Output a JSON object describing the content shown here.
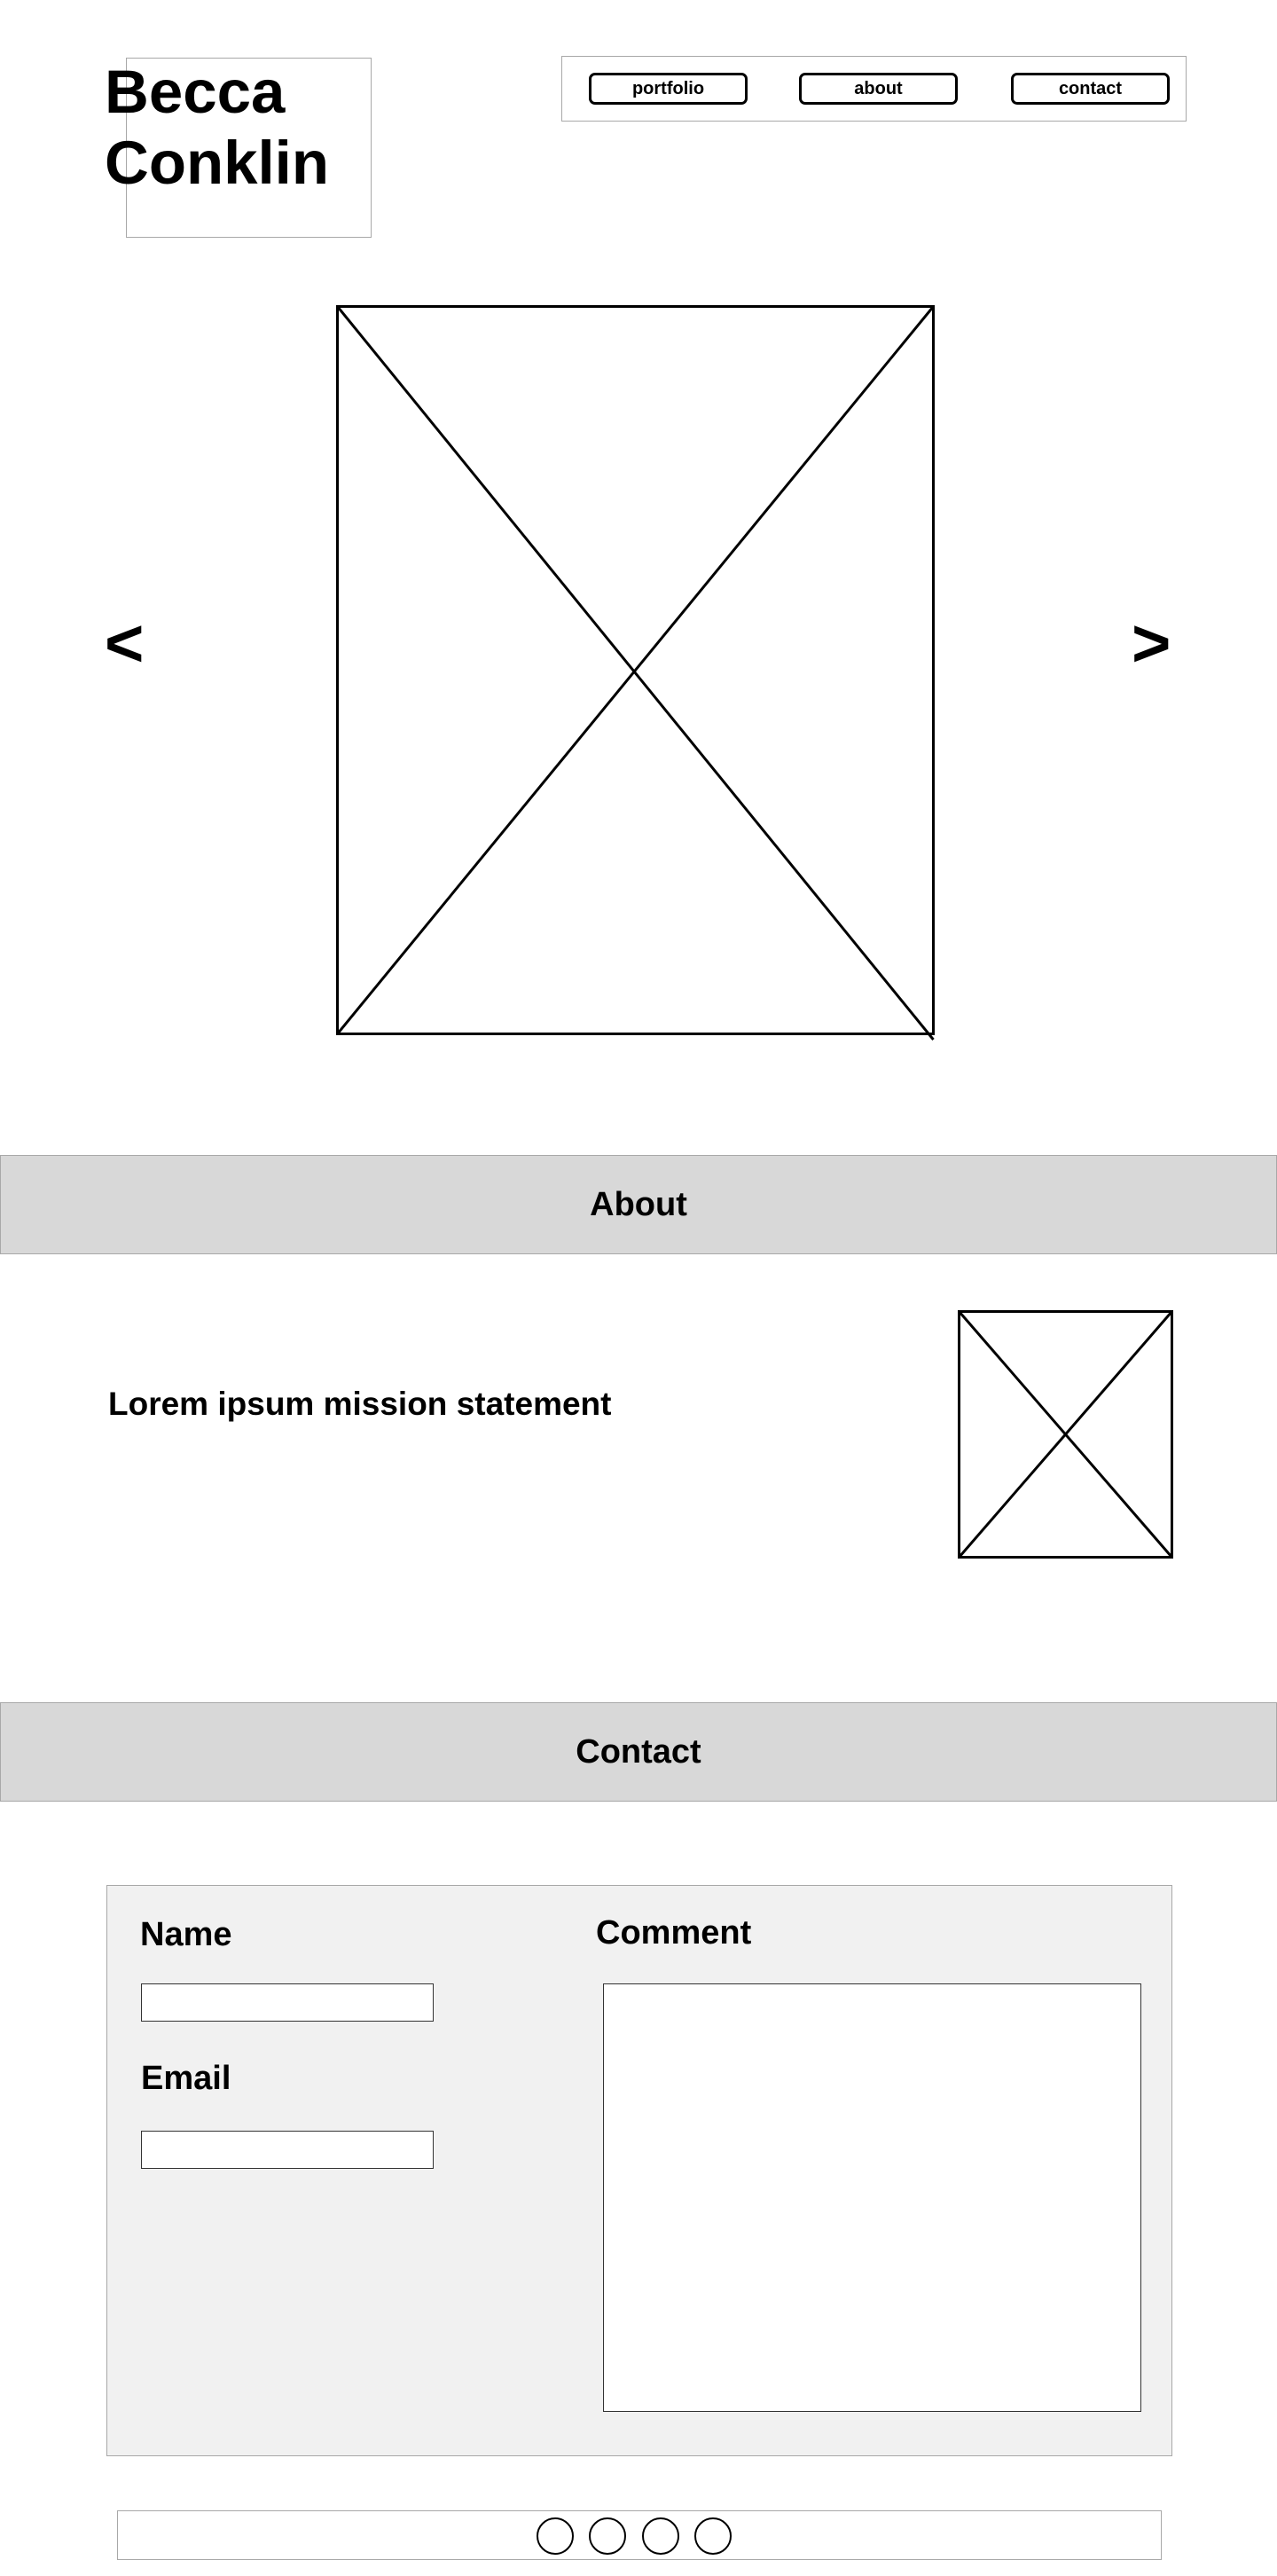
{
  "header": {
    "logo_line1": "Becca",
    "logo_line2": "Conklin"
  },
  "nav": {
    "items": [
      {
        "label": "portfolio"
      },
      {
        "label": "about"
      },
      {
        "label": "contact"
      }
    ]
  },
  "carousel": {
    "prev_label": "<",
    "next_label": ">",
    "image_icon": "image-placeholder-icon"
  },
  "about": {
    "heading": "About",
    "mission": "Lorem ipsum mission statement",
    "image_icon": "image-placeholder-icon"
  },
  "contact": {
    "heading": "Contact",
    "name_label": "Name",
    "name_value": "",
    "email_label": "Email",
    "email_value": "",
    "comment_label": "Comment",
    "comment_value": ""
  },
  "footer": {
    "social_icons": [
      "social-icon-1",
      "social-icon-2",
      "social-icon-3",
      "social-icon-4"
    ]
  },
  "colors": {
    "section_bar": "#d8d8d8",
    "form_panel": "#f1f1f1",
    "outline": "#a8a8a8",
    "stroke": "#000000"
  }
}
